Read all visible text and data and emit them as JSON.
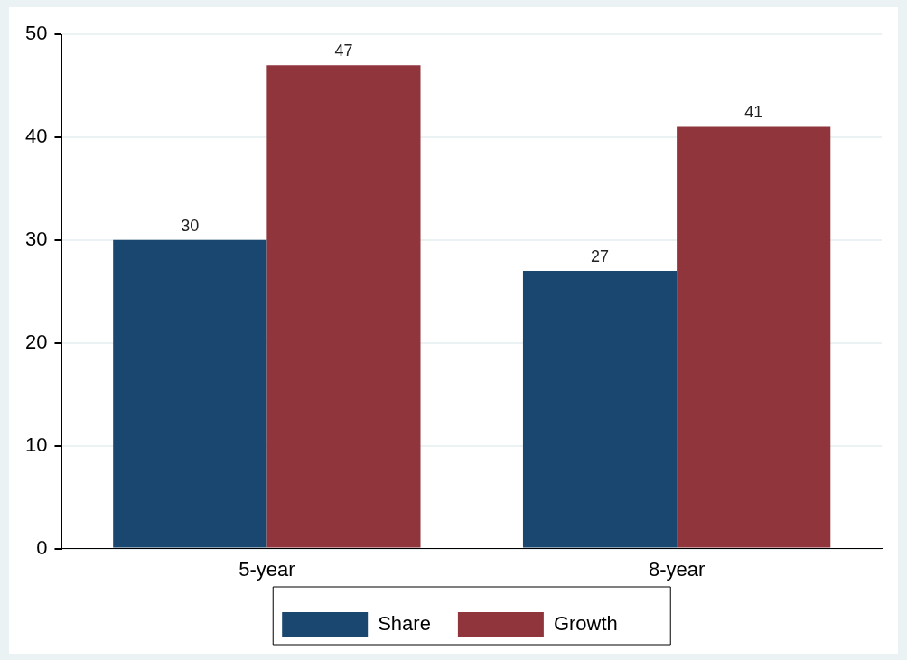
{
  "chart_data": {
    "type": "bar",
    "categories": [
      "5-year",
      "8-year"
    ],
    "series": [
      {
        "name": "Share",
        "color": "#1a476f",
        "values": [
          30,
          27
        ]
      },
      {
        "name": "Growth",
        "color": "#90353b",
        "values": [
          47,
          41
        ]
      }
    ],
    "ylim": [
      0,
      50
    ],
    "yticks": [
      0,
      10,
      20,
      30,
      40,
      50
    ],
    "grid": "y",
    "legend": "bottom",
    "data_labels": true
  }
}
